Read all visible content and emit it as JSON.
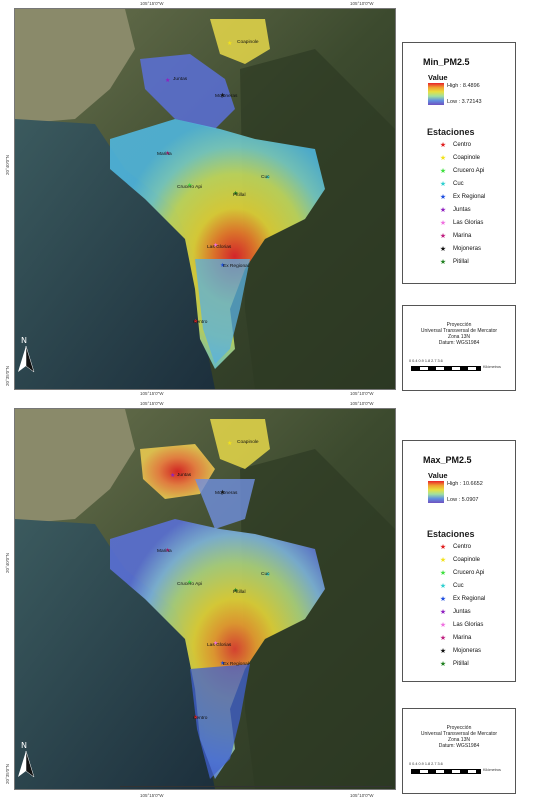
{
  "panels": [
    {
      "map_title": "Min_PM2.5",
      "value_label": "Value",
      "high_label": "High : 8.4896",
      "low_label": "Low : 3.72143",
      "hotspot_station": "Pitilal"
    },
    {
      "map_title": "Max_PM2.5",
      "value_label": "Value",
      "high_label": "High : 10.6652",
      "low_label": "Low : 5.0907",
      "hotspot_station": "Juntas"
    }
  ],
  "coords": {
    "top_left": "105°15'0\"W",
    "top_right": "105°10'0\"W",
    "left_upper": "20°40'0\"N",
    "left_lower": "20°35'0\"N",
    "bottom_left": "105°15'0\"W",
    "bottom_right": "105°10'0\"W"
  },
  "stations_title": "Estaciones",
  "stations": [
    {
      "name": "Centro",
      "color": "#e02020"
    },
    {
      "name": "Coapinole",
      "color": "#f2e21a"
    },
    {
      "name": "Crucero Api",
      "color": "#40e040"
    },
    {
      "name": "Cuc",
      "color": "#30d0d0"
    },
    {
      "name": "Ex Regional",
      "color": "#2050e0"
    },
    {
      "name": "Juntas",
      "color": "#9020c0"
    },
    {
      "name": "Las Glorias",
      "color": "#f070e0"
    },
    {
      "name": "Marina",
      "color": "#c02080"
    },
    {
      "name": "Mojoneras",
      "color": "#111111"
    },
    {
      "name": "Pitillal",
      "color": "#208020"
    }
  ],
  "map_labels": {
    "pitillal": "Pitillal",
    "juntas": "Juntas",
    "mojoneras": "Mojoneras",
    "marina": "Marina",
    "crucero_api": "Crucero Api",
    "coapinole": "Coapinole",
    "las_glorias": "Las Glorias",
    "ex_regional": "Ex Regional",
    "centro": "Centro",
    "cuc": "Cuc"
  },
  "projection": {
    "line1": "Proyección",
    "line2": "Universal Transversal de Mercator",
    "line3": "Zona 13N",
    "line4": "Datum: WGS1984"
  },
  "scale": {
    "numbers": "0   0.4  0.9      1.8       2.7      3.6",
    "unit": "Kilómetros"
  },
  "north_letter": "N"
}
